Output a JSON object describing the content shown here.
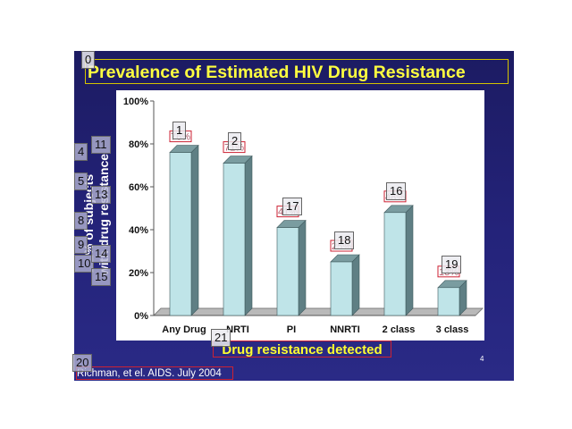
{
  "title": "Prevalence of Estimated HIV Drug Resistance",
  "y_axis_label_lines": [
    "% of subjects",
    "with drug resistance"
  ],
  "x_axis_label": "Drug resistance detected",
  "citation": "Richman, et el. AIDS. July 2004",
  "page_number": "4",
  "tags": [
    "0",
    "1",
    "2",
    "4",
    "5",
    "8",
    "9",
    "10",
    "11",
    "13",
    "14",
    "15",
    "16",
    "17",
    "18",
    "19",
    "20",
    "21"
  ],
  "colors": {
    "slide_bg": "#24237a",
    "title": "#ffff40",
    "bar_front": "#bfe4e8",
    "bar_side": "#5f7f84",
    "value_label": "#cc2233"
  },
  "chart_data": {
    "type": "bar",
    "categories": [
      "Any Drug",
      "NRTI",
      "PI",
      "NNRTI",
      "2 class",
      "3 class"
    ],
    "values": [
      76,
      71,
      41,
      25,
      48,
      13
    ],
    "value_labels": [
      "76%",
      "71%",
      "41%",
      "25%",
      "48%",
      "13%"
    ],
    "title": "Prevalence of Estimated HIV Drug Resistance",
    "xlabel": "Drug resistance detected",
    "ylabel": "% of subjects with drug resistance",
    "ylim": [
      0,
      100
    ],
    "yticks": [
      0,
      20,
      40,
      60,
      80,
      100
    ],
    "ytick_labels": [
      "0%",
      "20%",
      "40%",
      "60%",
      "80%",
      "100%"
    ],
    "grid": false,
    "style": "3d-bar"
  }
}
